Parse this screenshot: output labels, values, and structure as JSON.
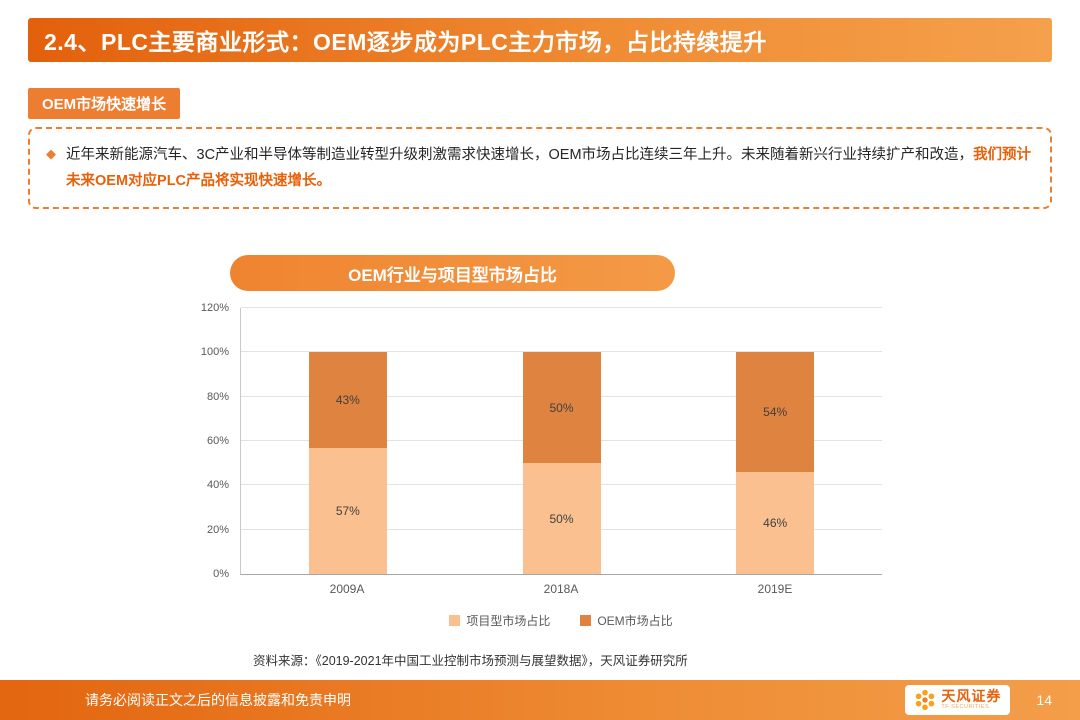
{
  "header": {
    "title": "2.4、PLC主要商业形式：OEM逐步成为PLC主力市场，占比持续提升"
  },
  "badge": {
    "label": "OEM市场快速增长"
  },
  "callout": {
    "bullet": "◆",
    "text_main": "近年来新能源汽车、3C产业和半导体等制造业转型升级刺激需求快速增长，OEM市场占比连续三年上升。未来随着新兴行业持续扩产和改造，",
    "text_highlight": "我们预计未来OEM对应PLC产品将实现快速增长。"
  },
  "chart_data": {
    "type": "bar",
    "stacked": true,
    "title": "OEM行业与项目型市场占比",
    "categories": [
      "2009A",
      "2018A",
      "2019E"
    ],
    "series": [
      {
        "name": "项目型市场占比",
        "color": "#FAC090",
        "values": [
          57,
          50,
          46
        ]
      },
      {
        "name": "OEM市场占比",
        "color": "#DF8340",
        "values": [
          43,
          50,
          54
        ]
      }
    ],
    "value_suffix": "%",
    "ylim": [
      0,
      120
    ],
    "yticks": [
      "0%",
      "20%",
      "40%",
      "60%",
      "80%",
      "100%",
      "120%"
    ],
    "grid": true,
    "legend_position": "bottom"
  },
  "source": {
    "text": "资料来源：《2019-2021年中国工业控制市场预测与展望数据》，天风证券研究所"
  },
  "footer": {
    "disclaimer": "请务必阅读正文之后的信息披露和免责申明",
    "logo_cn": "天风证券",
    "logo_en": "TF SECURITIES",
    "page_number": "14"
  },
  "colors": {
    "accent": "#ED7D31",
    "header_gradient_start": "#E3600C",
    "header_gradient_end": "#F5A04C"
  }
}
